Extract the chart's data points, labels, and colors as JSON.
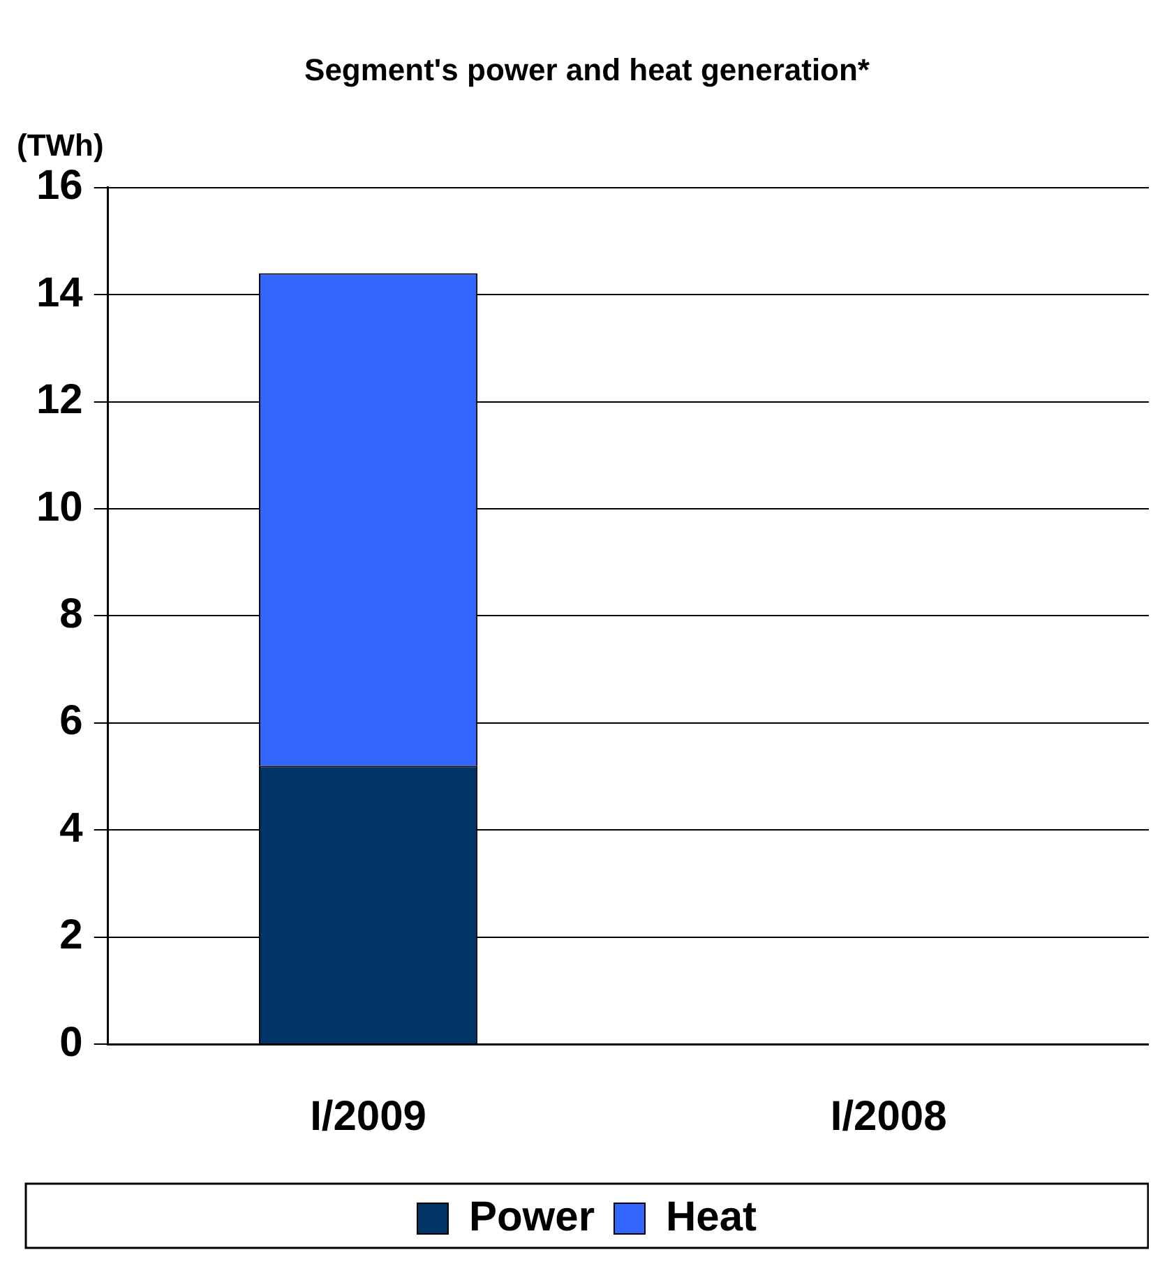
{
  "chart_data": {
    "type": "bar",
    "title": "Segment's power and heat generation*",
    "ylabel": "(TWh)",
    "categories": [
      "I/2009",
      "I/2008"
    ],
    "stacked": true,
    "series": [
      {
        "name": "Power",
        "color": "#003366",
        "values": [
          5.2,
          null
        ]
      },
      {
        "name": "Heat",
        "color": "#3366ff",
        "values": [
          9.2,
          null
        ]
      }
    ],
    "ylim": [
      0,
      16
    ],
    "yticks": [
      0,
      2,
      4,
      6,
      8,
      10,
      12,
      14,
      16
    ],
    "grid": "y",
    "legend": "bottom"
  }
}
